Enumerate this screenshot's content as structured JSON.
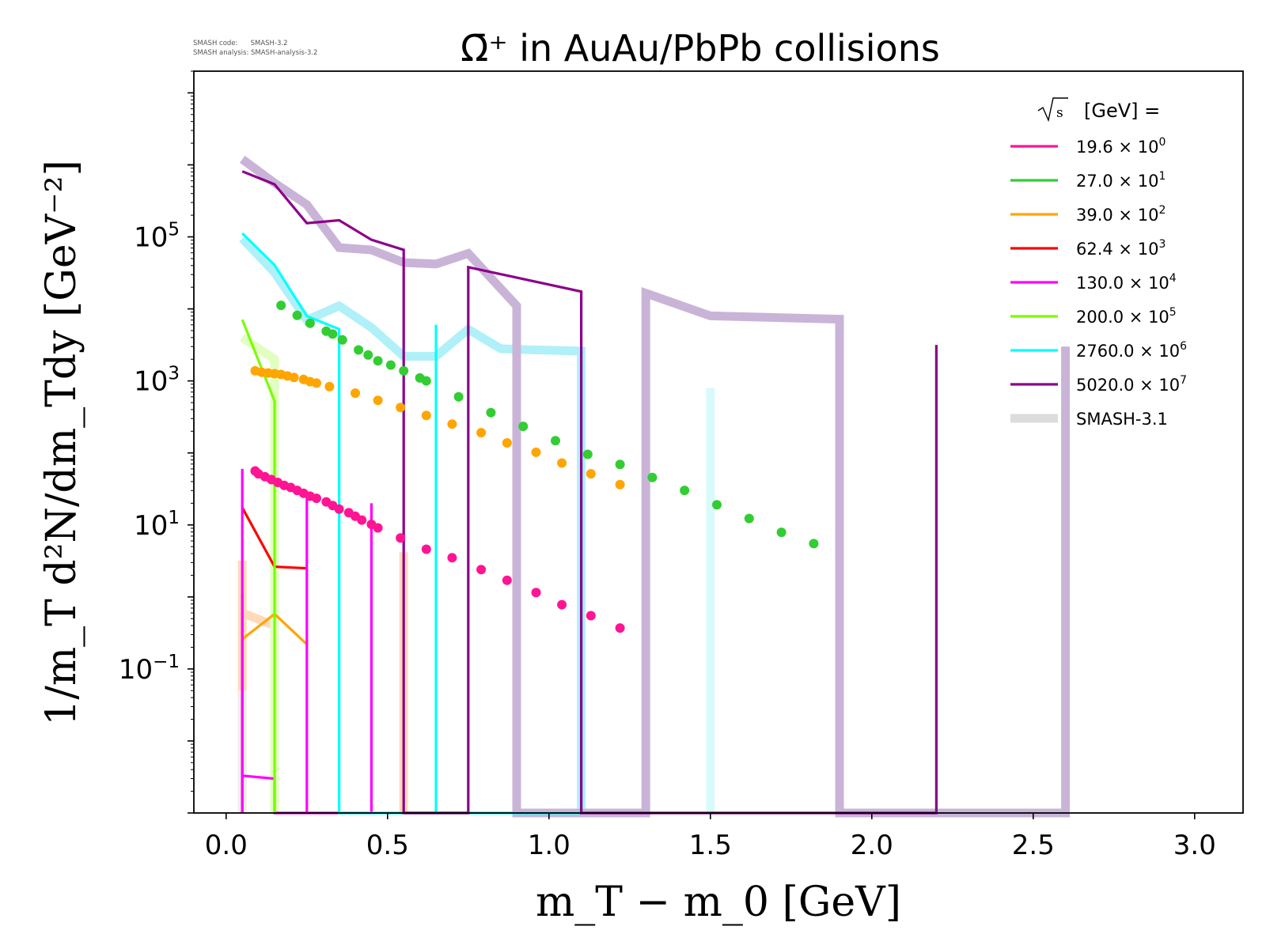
{
  "meta": {
    "line1": "SMASH code:      SMASH-3.2",
    "line2": "SMASH analysis: SMASH-analysis-3.2"
  },
  "chart_data": {
    "type": "scatter",
    "title": "Ω̄⁺ in AuAu/PbPb collisions",
    "xlabel": "m_T − m_0 [GeV]",
    "ylabel": "1/m_T d²N/dm_Tdy [GeV⁻²]",
    "x_scale": "linear",
    "y_scale": "log",
    "xlim": [
      -0.1,
      3.15
    ],
    "ylim": [
      0.001,
      20000000
    ],
    "x_ticks": [
      0.0,
      0.5,
      1.0,
      1.5,
      2.0,
      2.5,
      3.0
    ],
    "x_tick_labels": [
      "0.0",
      "0.5",
      "1.0",
      "1.5",
      "2.0",
      "2.5",
      "3.0"
    ],
    "y_ticks": [
      0.1,
      10,
      1000,
      100000
    ],
    "y_tick_labels": [
      {
        "base": "10",
        "exp": "−1"
      },
      {
        "base": "10",
        "exp": "1"
      },
      {
        "base": "10",
        "exp": "3"
      },
      {
        "base": "10",
        "exp": "5"
      }
    ],
    "grid": false,
    "legend": {
      "position": "top-right",
      "title": "[GeV] =",
      "title_sqrt": "s",
      "entries": [
        {
          "label": "19.6",
          "power": "0",
          "color": "#ff1493"
        },
        {
          "label": "27.0",
          "power": "1",
          "color": "#32cd32"
        },
        {
          "label": "39.0",
          "power": "2",
          "color": "#ffa500"
        },
        {
          "label": "62.4",
          "power": "3",
          "color": "#ff0000"
        },
        {
          "label": "130.0",
          "power": "4",
          "color": "#ff00ff"
        },
        {
          "label": "200.0",
          "power": "5",
          "color": "#7cfc00"
        },
        {
          "label": "2760.0",
          "power": "6",
          "color": "#00ffff"
        },
        {
          "label": "5020.0",
          "power": "7",
          "color": "#8b008b"
        }
      ],
      "smash_label": "SMASH-3.1",
      "smash_color": "#dcdcdc"
    },
    "series": [
      {
        "name": "19.6",
        "color": "#ff1493",
        "scale": 1,
        "data": [
          [
            0.09,
            56.2
          ],
          [
            0.1,
            51.3
          ],
          [
            0.12,
            46.8
          ],
          [
            0.14,
            42.7
          ],
          [
            0.16,
            38.9
          ],
          [
            0.18,
            35.5
          ],
          [
            0.2,
            33.1
          ],
          [
            0.22,
            30.2
          ],
          [
            0.24,
            27.5
          ],
          [
            0.26,
            25.1
          ],
          [
            0.28,
            23.4
          ],
          [
            0.31,
            20.9
          ],
          [
            0.33,
            18.6
          ],
          [
            0.35,
            16.6
          ],
          [
            0.38,
            14.8
          ],
          [
            0.4,
            13.2
          ],
          [
            0.42,
            11.7
          ],
          [
            0.45,
            10.2
          ],
          [
            0.47,
            9.1
          ],
          [
            0.54,
            6.6
          ],
          [
            0.62,
            4.6
          ],
          [
            0.7,
            3.5
          ],
          [
            0.79,
            2.4
          ],
          [
            0.87,
            1.7
          ],
          [
            0.96,
            1.15
          ],
          [
            1.04,
            0.78
          ],
          [
            1.13,
            0.55
          ],
          [
            1.22,
            0.37
          ]
        ],
        "model": [
          [
            0.05,
            1.1
          ],
          [
            0.05,
            0.001
          ]
        ]
      },
      {
        "name": "27.0",
        "color": "#32cd32",
        "scale": 10,
        "data": [
          [
            0.17,
            11200
          ],
          [
            0.22,
            8130
          ],
          [
            0.26,
            6310
          ],
          [
            0.31,
            4900
          ],
          [
            0.33,
            4470
          ],
          [
            0.36,
            3720
          ],
          [
            0.41,
            2690
          ],
          [
            0.44,
            2290
          ],
          [
            0.47,
            1900
          ],
          [
            0.51,
            1660
          ],
          [
            0.55,
            1380
          ],
          [
            0.6,
            1100
          ],
          [
            0.62,
            1000
          ],
          [
            0.72,
            603
          ],
          [
            0.82,
            363
          ],
          [
            0.92,
            234
          ],
          [
            1.02,
            148
          ],
          [
            1.12,
            95.5
          ],
          [
            1.22,
            69.2
          ],
          [
            1.32,
            45.7
          ],
          [
            1.42,
            30.2
          ],
          [
            1.52,
            19.1
          ],
          [
            1.62,
            12.3
          ],
          [
            1.72,
            7.9
          ],
          [
            1.82,
            5.5
          ]
        ]
      },
      {
        "name": "39.0",
        "color": "#ffa500",
        "scale": 100,
        "data": [
          [
            0.09,
            1380
          ],
          [
            0.11,
            1320
          ],
          [
            0.13,
            1290
          ],
          [
            0.15,
            1260
          ],
          [
            0.17,
            1230
          ],
          [
            0.19,
            1170
          ],
          [
            0.21,
            1120
          ],
          [
            0.24,
            1050
          ],
          [
            0.26,
            977
          ],
          [
            0.28,
            933
          ],
          [
            0.32,
            832
          ],
          [
            0.4,
            676
          ],
          [
            0.47,
            537
          ],
          [
            0.54,
            427
          ],
          [
            0.62,
            331
          ],
          [
            0.7,
            251
          ],
          [
            0.79,
            191
          ],
          [
            0.87,
            138
          ],
          [
            0.96,
            102
          ],
          [
            1.04,
            72.4
          ],
          [
            1.13,
            51.3
          ],
          [
            1.22,
            36.3
          ]
        ],
        "model": [
          [
            0.05,
            0.26
          ],
          [
            0.15,
            0.58
          ],
          [
            0.25,
            0.22
          ]
        ]
      },
      {
        "name": "62.4",
        "color": "#ff0000",
        "scale": 1000,
        "model": [
          [
            0.05,
            17.4
          ],
          [
            0.15,
            2.63
          ],
          [
            0.25,
            2.5
          ]
        ]
      },
      {
        "name": "130.0",
        "color": "#ff00ff",
        "scale": 10000,
        "model": [
          [
            0.05,
            0.001
          ],
          [
            0.05,
            60
          ],
          [
            0.05,
            0.0033
          ],
          [
            0.15,
            0.003
          ],
          [
            0.15,
            0.001
          ],
          [
            0.25,
            0.001
          ],
          [
            0.25,
            25
          ],
          [
            0.25,
            0.001
          ],
          [
            0.45,
            0.001
          ],
          [
            0.45,
            20
          ],
          [
            0.45,
            0.001
          ]
        ]
      },
      {
        "name": "200.0",
        "color": "#7cfc00",
        "scale": 100000,
        "model": [
          [
            0.05,
            7080
          ],
          [
            0.15,
            525
          ],
          [
            0.15,
            0.001
          ]
        ]
      },
      {
        "name": "2760.0",
        "color": "#00ffff",
        "scale": 1000000,
        "model": [
          [
            0.05,
            112000
          ],
          [
            0.15,
            40700
          ],
          [
            0.25,
            7940
          ],
          [
            0.35,
            5250
          ],
          [
            0.35,
            0.001
          ],
          [
            0.65,
            0.001
          ],
          [
            0.65,
            6030
          ],
          [
            0.65,
            0.001
          ],
          [
            1.1,
            0.001
          ],
          [
            1.1,
            3000
          ],
          [
            1.1,
            0.001
          ]
        ]
      },
      {
        "name": "5020.0",
        "color": "#8b008b",
        "scale": 10000000,
        "model": [
          [
            0.05,
            813000
          ],
          [
            0.15,
            537000
          ],
          [
            0.25,
            155000
          ],
          [
            0.35,
            170000
          ],
          [
            0.45,
            91200
          ],
          [
            0.55,
            66100
          ],
          [
            0.55,
            0.001
          ],
          [
            0.75,
            0.001
          ],
          [
            0.75,
            38000
          ],
          [
            1.1,
            17400
          ],
          [
            1.1,
            0.001
          ],
          [
            2.2,
            0.001
          ],
          [
            2.2,
            3160
          ],
          [
            2.2,
            0.001
          ]
        ]
      }
    ],
    "smash31": [
      {
        "color": "#ffdab9",
        "points": [
          [
            0.05,
            0.001
          ],
          [
            0.05,
            3.2
          ],
          [
            0.05,
            0.001
          ]
        ]
      },
      {
        "color": "#ffdab9",
        "points": [
          [
            0.05,
            0.6
          ],
          [
            0.15,
            0.4
          ]
        ]
      },
      {
        "color": "#ffdab9",
        "points": [
          [
            0.55,
            0.001
          ],
          [
            0.55,
            4.2
          ],
          [
            0.55,
            0.001
          ]
        ]
      },
      {
        "color": "#eeeeee",
        "points": [
          [
            0.05,
            0.001
          ],
          [
            0.05,
            0.05
          ]
        ]
      },
      {
        "color": "#e0ffc0",
        "points": [
          [
            0.05,
            4000
          ],
          [
            0.15,
            2000
          ],
          [
            0.15,
            0.001
          ]
        ]
      },
      {
        "color": "#b0f0f8",
        "points": [
          [
            0.05,
            95000
          ],
          [
            0.15,
            32000
          ],
          [
            0.25,
            7000
          ],
          [
            0.35,
            11000
          ],
          [
            0.45,
            5500
          ],
          [
            0.55,
            2200
          ],
          [
            0.65,
            2200
          ],
          [
            0.75,
            5200
          ],
          [
            0.85,
            2800
          ],
          [
            0.95,
            2700
          ],
          [
            1.1,
            2600
          ],
          [
            1.1,
            0.001
          ]
        ]
      },
      {
        "color": "#d9fafa",
        "points": [
          [
            1.5,
            0.001
          ],
          [
            1.5,
            800
          ],
          [
            1.5,
            0.001
          ]
        ]
      },
      {
        "color": "#c9b4d8",
        "points": [
          [
            0.05,
            1200000
          ],
          [
            0.15,
            560000
          ],
          [
            0.25,
            280000
          ],
          [
            0.35,
            71000
          ],
          [
            0.45,
            66000
          ],
          [
            0.55,
            44000
          ],
          [
            0.65,
            42000
          ],
          [
            0.75,
            59000
          ],
          [
            0.9,
            11000
          ],
          [
            0.9,
            0.001
          ],
          [
            1.3,
            0.001
          ],
          [
            1.3,
            16500
          ],
          [
            1.5,
            8000
          ],
          [
            1.9,
            7200
          ],
          [
            1.9,
            0.001
          ],
          [
            2.6,
            0.001
          ],
          [
            2.6,
            3000
          ],
          [
            2.6,
            0.001
          ]
        ]
      }
    ]
  }
}
